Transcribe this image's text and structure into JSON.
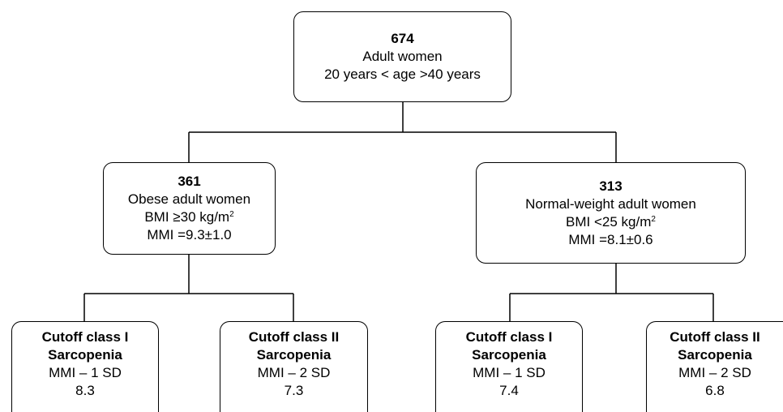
{
  "nodes": [
    {
      "count": "674",
      "lines": [
        "Adult women",
        "20 years < age >40 years"
      ]
    },
    {
      "count": "361",
      "label": "Obese adult women",
      "bmi": "BMI ≥30 kg/m",
      "bmi_sup": "2",
      "mmi": "MMI =9.3±1.0"
    },
    {
      "count": "313",
      "label": "Normal-weight adult women",
      "bmi": "BMI <25 kg/m",
      "bmi_sup": "2",
      "mmi": "MMI =8.1±0.6"
    },
    {
      "title": [
        "Cutoff class I",
        "Sarcopenia"
      ],
      "formula": "MMI – 1 SD",
      "value": "8.3"
    },
    {
      "title": [
        "Cutoff class II",
        "Sarcopenia"
      ],
      "formula": "MMI – 2 SD",
      "value": "7.3"
    },
    {
      "title": [
        "Cutoff class I",
        "Sarcopenia"
      ],
      "formula": "MMI – 1 SD",
      "value": "7.4"
    },
    {
      "title": [
        "Cutoff class II",
        "Sarcopenia"
      ],
      "formula": "MMI – 2 SD",
      "value": "6.8"
    }
  ]
}
